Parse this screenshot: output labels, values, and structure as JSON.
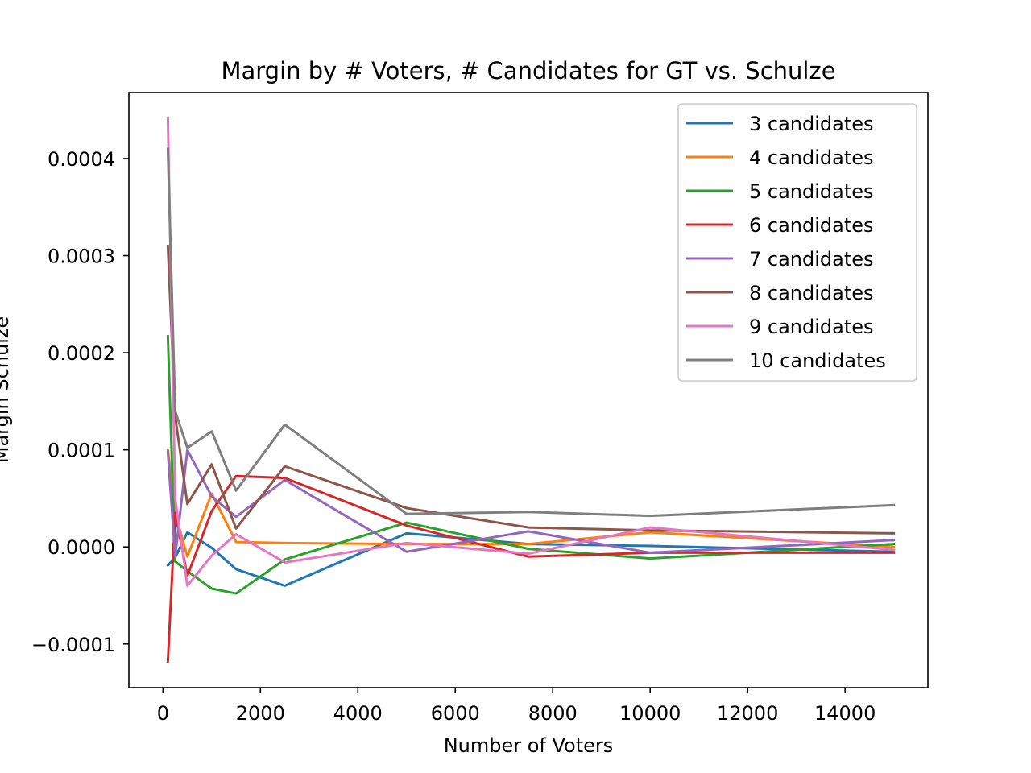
{
  "chart_data": {
    "type": "line",
    "title": "Margin by # Voters, # Candidates for GT vs. Schulze",
    "xlabel": "Number of Voters",
    "ylabel": "Margin Schulze",
    "xlim": [
      -700,
      15700
    ],
    "ylim": [
      -0.000145,
      0.000468
    ],
    "xticks": [
      0,
      2000,
      4000,
      6000,
      8000,
      10000,
      12000,
      14000
    ],
    "xtick_labels": [
      "0",
      "2000",
      "4000",
      "6000",
      "8000",
      "10000",
      "12000",
      "14000"
    ],
    "yticks": [
      -0.0001,
      0.0,
      0.0001,
      0.0002,
      0.0003,
      0.0004
    ],
    "ytick_labels": [
      "−0.0001",
      "0.0000",
      "0.0001",
      "0.0002",
      "0.0003",
      "0.0004"
    ],
    "grid": false,
    "legend_position": "top-right",
    "x": [
      100,
      250,
      500,
      1000,
      1500,
      2500,
      5000,
      7500,
      10000,
      15000
    ],
    "series": [
      {
        "name": "3 candidates",
        "color": "#1f77b4",
        "values": [
          -1.9e-05,
          -1.1e-05,
          1.5e-05,
          -1e-06,
          -2.3e-05,
          -4e-05,
          1.4e-05,
          3e-06,
          1e-06,
          -5e-06
        ]
      },
      {
        "name": "4 candidates",
        "color": "#ff7f0e",
        "values": [
          0.0001,
          3.5e-05,
          -1e-05,
          5.5e-05,
          5e-06,
          4e-06,
          3e-06,
          3e-06,
          1.5e-05,
          0.0
        ]
      },
      {
        "name": "5 candidates",
        "color": "#2ca02c",
        "values": [
          0.000217,
          -1.5e-05,
          -2.5e-05,
          -4.3e-05,
          -4.8e-05,
          -1.3e-05,
          2.5e-05,
          -2e-06,
          -1.2e-05,
          3e-06
        ]
      },
      {
        "name": "6 candidates",
        "color": "#d62728",
        "values": [
          -0.000118,
          3.5e-05,
          -3e-05,
          3.7e-05,
          7.3e-05,
          7.1e-05,
          2.2e-05,
          -1e-05,
          -6e-06,
          -6e-06
        ]
      },
      {
        "name": "7 candidates",
        "color": "#9467bd",
        "values": [
          9.8e-05,
          -1e-05,
          0.0001,
          5.2e-05,
          3.1e-05,
          6.9e-05,
          -5e-06,
          1.6e-05,
          -6e-06,
          7e-06
        ]
      },
      {
        "name": "8 candidates",
        "color": "#8c564b",
        "values": [
          0.00031,
          0.000135,
          4.4e-05,
          8.5e-05,
          1.9e-05,
          8.3e-05,
          4e-05,
          2e-05,
          1.7e-05,
          1.4e-05
        ]
      },
      {
        "name": "9 candidates",
        "color": "#e377c2",
        "values": [
          0.000442,
          5e-05,
          -4e-05,
          -9e-06,
          1.3e-05,
          -1.6e-05,
          4e-06,
          -7e-06,
          2e-05,
          -3e-06
        ]
      },
      {
        "name": "10 candidates",
        "color": "#7f7f7f",
        "values": [
          0.00041,
          0.00014,
          0.000102,
          0.000119,
          5.8e-05,
          0.000126,
          3.4e-05,
          3.6e-05,
          3.2e-05,
          4.3e-05
        ]
      }
    ]
  }
}
